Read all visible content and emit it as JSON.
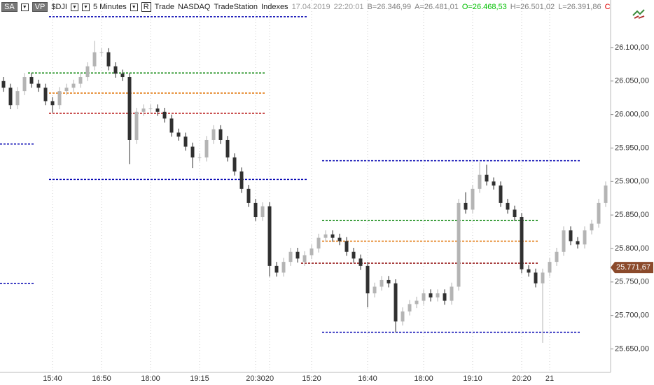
{
  "header": {
    "buttons": [
      "SA",
      "VP"
    ],
    "symbol": "$DJI",
    "interval": "5 Minutes",
    "r": "R",
    "items": [
      "Trade",
      "NASDAQ",
      "TradeStation",
      "Indexes"
    ],
    "date": "17.04.2019",
    "time": "22:20:01",
    "quotes": [
      {
        "text": "B=26.346,99",
        "color": "#808080"
      },
      {
        "text": "A=26.481,01",
        "color": "#808080"
      },
      {
        "text": "O=26.468,53",
        "color": "#00c000"
      },
      {
        "text": "H=26.501,02",
        "color": "#808080"
      },
      {
        "text": "L=26.391,86",
        "color": "#808080"
      },
      {
        "text": "C",
        "color": "#e00000"
      }
    ]
  },
  "chart_data": {
    "type": "candlestick",
    "up_color": "#b4b4b4",
    "down_color": "#303030",
    "ylim": [
      25615,
      26171
    ],
    "yticks": [
      {
        "value": 25650,
        "label": "25.650,00"
      },
      {
        "value": 25700,
        "label": "25.700,00"
      },
      {
        "value": 25750,
        "label": "25.750,00"
      },
      {
        "value": 25800,
        "label": "25.800,00"
      },
      {
        "value": 25850,
        "label": "25.850,00"
      },
      {
        "value": 25900,
        "label": "25.900,00"
      },
      {
        "value": 25950,
        "label": "25.950,00"
      },
      {
        "value": 26000,
        "label": "26.000,00"
      },
      {
        "value": 26050,
        "label": "26.050,00"
      },
      {
        "value": 26100,
        "label": "26.100,00"
      }
    ],
    "categories": [
      null,
      null,
      null,
      null,
      null,
      null,
      null,
      "15:40",
      null,
      null,
      null,
      null,
      null,
      null,
      "16:50",
      null,
      null,
      null,
      null,
      null,
      null,
      "18:00",
      null,
      null,
      null,
      null,
      null,
      null,
      "19:15",
      null,
      null,
      null,
      null,
      null,
      null,
      null,
      "20:30",
      null,
      "20",
      null,
      null,
      null,
      null,
      null,
      "15:20",
      null,
      null,
      null,
      null,
      null,
      null,
      null,
      "16:40",
      null,
      null,
      null,
      null,
      null,
      null,
      null,
      "18:00",
      null,
      null,
      null,
      null,
      null,
      null,
      "19:10",
      null,
      null,
      null,
      null,
      null,
      null,
      "20:20",
      null,
      null,
      null,
      "21",
      null,
      null,
      null,
      null,
      null,
      null,
      null,
      null
    ],
    "open": [
      26050,
      26040,
      26014,
      26035,
      26056,
      26046,
      26040,
      26020,
      26014,
      26035,
      26040,
      26046,
      26056,
      26072,
      26093,
      26093,
      26072,
      26061,
      26056,
      25962,
      26004,
      26009,
      26009,
      26004,
      25994,
      25973,
      25967,
      25952,
      25936,
      25936,
      25962,
      25978,
      25962,
      25936,
      25915,
      25889,
      25868,
      25847,
      25863,
      25774,
      25764,
      25780,
      25795,
      25780,
      25790,
      25800,
      25816,
      25821,
      25816,
      25811,
      25795,
      25785,
      25774,
      25733,
      25743,
      25753,
      25748,
      25691,
      25706,
      25717,
      25722,
      25733,
      25727,
      25733,
      25722,
      25743,
      25868,
      25858,
      25889,
      25910,
      25900,
      25894,
      25868,
      25858,
      25847,
      25769,
      25764,
      25748,
      25764,
      25780,
      25795,
      25827,
      25811,
      25806,
      25827,
      25837,
      25868
    ],
    "high": [
      26056,
      26046,
      26041,
      26062,
      26062,
      26052,
      26046,
      26026,
      26041,
      26046,
      26052,
      26062,
      26078,
      26110,
      26099,
      26099,
      26078,
      26067,
      26062,
      26010,
      26015,
      26015,
      26015,
      26010,
      26000,
      25979,
      25973,
      25958,
      25942,
      25968,
      25984,
      25984,
      25968,
      25942,
      25921,
      25895,
      25874,
      25869,
      25869,
      25780,
      25786,
      25801,
      25801,
      25796,
      25806,
      25822,
      25827,
      25827,
      25822,
      25817,
      25801,
      25791,
      25780,
      25749,
      25759,
      25759,
      25754,
      25712,
      25723,
      25728,
      25739,
      25739,
      25739,
      25739,
      25749,
      25874,
      25884,
      25895,
      25929,
      25925,
      25906,
      25900,
      25874,
      25864,
      25853,
      25775,
      25770,
      25770,
      25786,
      25801,
      25833,
      25833,
      25817,
      25833,
      25843,
      25874,
      25900
    ],
    "low": [
      26034,
      26008,
      26008,
      26029,
      26040,
      26034,
      26014,
      26003,
      26008,
      26029,
      26034,
      26040,
      26050,
      26066,
      26087,
      26066,
      26055,
      26050,
      25926,
      25956,
      25998,
      26003,
      25998,
      25988,
      25967,
      25961,
      25946,
      25920,
      25930,
      25930,
      25956,
      25956,
      25930,
      25909,
      25883,
      25862,
      25841,
      25841,
      25758,
      25758,
      25758,
      25774,
      25779,
      25774,
      25784,
      25794,
      25810,
      25810,
      25805,
      25789,
      25779,
      25768,
      25712,
      25727,
      25737,
      25742,
      25675,
      25685,
      25700,
      25711,
      25716,
      25721,
      25721,
      25716,
      25716,
      25737,
      25852,
      25852,
      25883,
      25894,
      25888,
      25862,
      25852,
      25841,
      25763,
      25758,
      25742,
      25659,
      25758,
      25774,
      25789,
      25805,
      25800,
      25800,
      25821,
      25831,
      25862
    ],
    "close": [
      26040,
      26014,
      26035,
      26056,
      26046,
      26040,
      26020,
      26014,
      26035,
      26040,
      26046,
      26056,
      26072,
      26093,
      26093,
      26072,
      26061,
      26056,
      25962,
      26004,
      26009,
      26009,
      26004,
      25994,
      25973,
      25967,
      25952,
      25936,
      25936,
      25962,
      25978,
      25962,
      25936,
      25915,
      25889,
      25868,
      25847,
      25863,
      25774,
      25764,
      25780,
      25795,
      25785,
      25790,
      25800,
      25816,
      25821,
      25816,
      25811,
      25795,
      25785,
      25774,
      25733,
      25743,
      25753,
      25748,
      25691,
      25706,
      25717,
      25722,
      25733,
      25727,
      25733,
      25722,
      25743,
      25868,
      25858,
      25889,
      25910,
      25900,
      25894,
      25868,
      25858,
      25847,
      25769,
      25764,
      25748,
      25764,
      25780,
      25795,
      25827,
      25811,
      25806,
      25827,
      25837,
      25868,
      25894
    ],
    "levels": [
      {
        "value": 26146,
        "color": "#0000b0",
        "from": 7,
        "to": 43
      },
      {
        "value": 26062,
        "color": "#008000",
        "from": 4,
        "to": 37
      },
      {
        "value": 26032,
        "color": "#e07000",
        "from": 7,
        "to": 37
      },
      {
        "value": 26002,
        "color": "#b00000",
        "from": 7,
        "to": 37
      },
      {
        "value": 25903,
        "color": "#0000b0",
        "from": 7,
        "to": 43
      },
      {
        "value": 25956,
        "color": "#0000b0",
        "from": 0,
        "to": 4
      },
      {
        "value": 25748,
        "color": "#0000b0",
        "from": 0,
        "to": 4
      },
      {
        "value": 25931,
        "color": "#0000b0",
        "from": 46,
        "to": 82
      },
      {
        "value": 25842,
        "color": "#008000",
        "from": 46,
        "to": 76
      },
      {
        "value": 25811,
        "color": "#e07000",
        "from": 46,
        "to": 76
      },
      {
        "value": 25778,
        "color": "#8b0000",
        "from": 43,
        "to": 76
      },
      {
        "value": 25675,
        "color": "#0000b0",
        "from": 46,
        "to": 82
      }
    ],
    "last_price": {
      "value": 25771.67,
      "label": "25.771,67",
      "color": "#8b4a2b"
    }
  }
}
